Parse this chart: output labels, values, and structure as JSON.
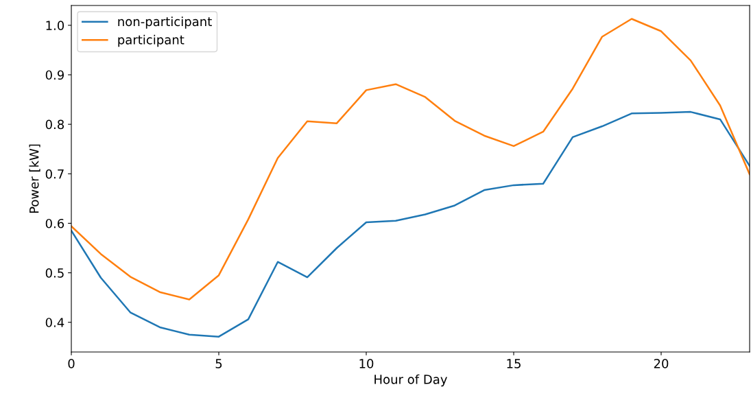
{
  "chart_data": {
    "type": "line",
    "xlabel": "Hour of Day",
    "ylabel": "Power [kW]",
    "x": [
      0,
      1,
      2,
      3,
      4,
      5,
      6,
      7,
      8,
      9,
      10,
      11,
      12,
      13,
      14,
      15,
      16,
      17,
      18,
      19,
      20,
      21,
      22,
      23
    ],
    "series": [
      {
        "name": "non-participant",
        "color": "#1f77b4",
        "values": [
          0.585,
          0.49,
          0.42,
          0.39,
          0.375,
          0.371,
          0.406,
          0.522,
          0.491,
          0.55,
          0.602,
          0.605,
          0.618,
          0.636,
          0.667,
          0.677,
          0.68,
          0.774,
          0.796,
          0.822,
          0.823,
          0.825,
          0.81,
          0.716
        ]
      },
      {
        "name": "participant",
        "color": "#ff7f0e",
        "values": [
          0.594,
          0.538,
          0.492,
          0.461,
          0.446,
          0.495,
          0.608,
          0.732,
          0.806,
          0.802,
          0.869,
          0.881,
          0.855,
          0.807,
          0.777,
          0.756,
          0.785,
          0.872,
          0.977,
          1.013,
          0.988,
          0.929,
          0.838,
          0.699
        ]
      }
    ],
    "xlim": [
      0,
      23
    ],
    "xticks": [
      0,
      5,
      10,
      15,
      20
    ],
    "ylim": [
      0.34,
      1.04
    ],
    "yticks": [
      {
        "value": 0.4,
        "label": "0.4"
      },
      {
        "value": 0.5,
        "label": "0.5"
      },
      {
        "value": 0.6,
        "label": "0.6"
      },
      {
        "value": 0.7,
        "label": "0.7"
      },
      {
        "value": 0.8,
        "label": "0.8"
      },
      {
        "value": 0.9,
        "label": "0.9"
      },
      {
        "value": 1.0,
        "label": "1.0"
      }
    ],
    "legend": "top left",
    "grid": false
  }
}
